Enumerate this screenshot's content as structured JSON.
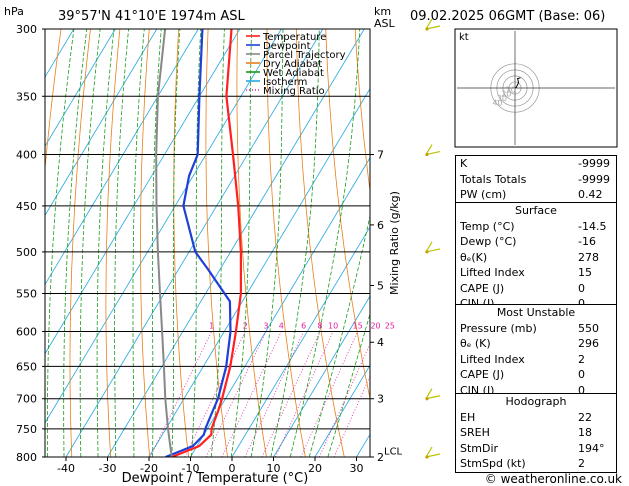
{
  "header": {
    "location": "39°57'N  41°10'E  1974m  ASL",
    "datetime": "09.02.2025  06GMT  (Base: 06)",
    "hpa_label": "hPa",
    "km_label": "km",
    "asl_label": "ASL"
  },
  "legend": [
    {
      "label": "Temperature",
      "color": "#ff2020"
    },
    {
      "label": "Dewpoint",
      "color": "#1f3fd9"
    },
    {
      "label": "Parcel Trajectory",
      "color": "#888888"
    },
    {
      "label": "Dry Adiabat",
      "color": "#e87f1a"
    },
    {
      "label": "Wet Adiabat",
      "color": "#1a9a1a"
    },
    {
      "label": "Isotherm",
      "color": "#25a8e0"
    },
    {
      "label": "Mixing Ratio",
      "color": "#e020a0"
    }
  ],
  "chart_data": {
    "type": "line",
    "title": "39°57'N  41°10'E  1974m  ASL",
    "xlabel": "Dewpoint / Temperature (°C)",
    "ylabel": "hPa",
    "y2label": "Mixing Ratio (g/kg)",
    "x_ticks": [
      "-40",
      "-30",
      "-20",
      "-10",
      "0",
      "10",
      "20",
      "30"
    ],
    "y_ticks": [
      "300",
      "350",
      "400",
      "450",
      "500",
      "550",
      "600",
      "650",
      "700",
      "750",
      "800"
    ],
    "km_ticks": [
      {
        "label": "7",
        "p": 400
      },
      {
        "label": "6",
        "p": 470
      },
      {
        "label": "5",
        "p": 540
      },
      {
        "label": "4",
        "p": 615
      },
      {
        "label": "3",
        "p": 700
      },
      {
        "label": "2",
        "p": 800
      }
    ],
    "lcl_label": "LCL",
    "lcl_p": 790,
    "mixing_ratio_labels": [
      "1",
      "2",
      "3",
      "4",
      "6",
      "8",
      "10",
      "15",
      "20",
      "25"
    ],
    "series": [
      {
        "name": "Temperature",
        "color": "#ff2020",
        "p": [
          800,
          780,
          760,
          750,
          720,
          700,
          650,
          600,
          550,
          500,
          450,
          400,
          350,
          300
        ],
        "t": [
          -14.5,
          -9.5,
          -8.2,
          -9.0,
          -10.0,
          -10.8,
          -13.5,
          -17.2,
          -21.5,
          -27.5,
          -34.8,
          -43.5,
          -53.5,
          -62.0
        ]
      },
      {
        "name": "Dewpoint",
        "color": "#1f3fd9",
        "p": [
          800,
          780,
          760,
          750,
          720,
          700,
          650,
          600,
          560,
          520,
          500,
          450,
          420,
          400,
          350,
          300
        ],
        "t": [
          -16.0,
          -11.0,
          -10.0,
          -10.5,
          -11.3,
          -11.8,
          -14.5,
          -18.5,
          -23.0,
          -33.0,
          -38.5,
          -48.0,
          -51.0,
          -52.0,
          -60.0,
          -69.0
        ]
      },
      {
        "name": "Parcel Trajectory",
        "color": "#888888",
        "p": [
          800,
          790,
          750,
          700,
          650,
          600,
          550,
          500,
          450,
          400,
          350,
          300
        ],
        "t": [
          -14.5,
          -15.5,
          -19.5,
          -24.5,
          -29.5,
          -35.0,
          -41.0,
          -47.5,
          -54.5,
          -62.0,
          -70.0,
          -78.0
        ]
      }
    ],
    "wind_barbs_p": [
      800,
      700,
      500,
      400,
      300
    ],
    "hodograph": {
      "label": "kt",
      "ring_labels": [
        "10",
        "20",
        "30",
        "40"
      ],
      "points": [
        [
          0,
          0
        ],
        [
          1.0,
          0.5
        ],
        [
          3.0,
          4.5
        ],
        [
          2.2,
          7.8
        ],
        [
          4.5,
          8.5
        ]
      ]
    }
  },
  "indices": [
    {
      "label": "K",
      "value": "-9999"
    },
    {
      "label": "Totals Totals",
      "value": "-9999"
    },
    {
      "label": "PW (cm)",
      "value": "0.42"
    }
  ],
  "surface": {
    "title": "Surface",
    "rows": [
      {
        "label": "Temp (°C)",
        "value": "-14.5"
      },
      {
        "label": "Dewp (°C)",
        "value": "-16"
      },
      {
        "label": "θₑ(K)",
        "value": "278"
      },
      {
        "label": "Lifted Index",
        "value": "15"
      },
      {
        "label": "CAPE (J)",
        "value": "0"
      },
      {
        "label": "CIN (J)",
        "value": "0"
      }
    ]
  },
  "unstable": {
    "title": "Most Unstable",
    "rows": [
      {
        "label": "Pressure (mb)",
        "value": "550"
      },
      {
        "label": "θₑ (K)",
        "value": "296"
      },
      {
        "label": "Lifted Index",
        "value": "2"
      },
      {
        "label": "CAPE (J)",
        "value": "0"
      },
      {
        "label": "CIN (J)",
        "value": "0"
      }
    ]
  },
  "hodograph_table": {
    "title": "Hodograph",
    "rows": [
      {
        "label": "EH",
        "value": "22"
      },
      {
        "label": "SREH",
        "value": "18"
      },
      {
        "label": "StmDir",
        "value": "194°"
      },
      {
        "label": "StmSpd (kt)",
        "value": "2"
      }
    ]
  },
  "footer": {
    "copyright": "© weatheronline.co.uk"
  }
}
